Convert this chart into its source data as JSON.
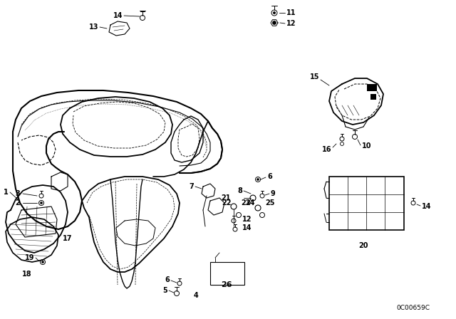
{
  "bg_color": "#ffffff",
  "line_color": "#000000",
  "diagram_code": "0C00659C",
  "figsize": [
    6.4,
    4.48
  ],
  "dpi": 100
}
